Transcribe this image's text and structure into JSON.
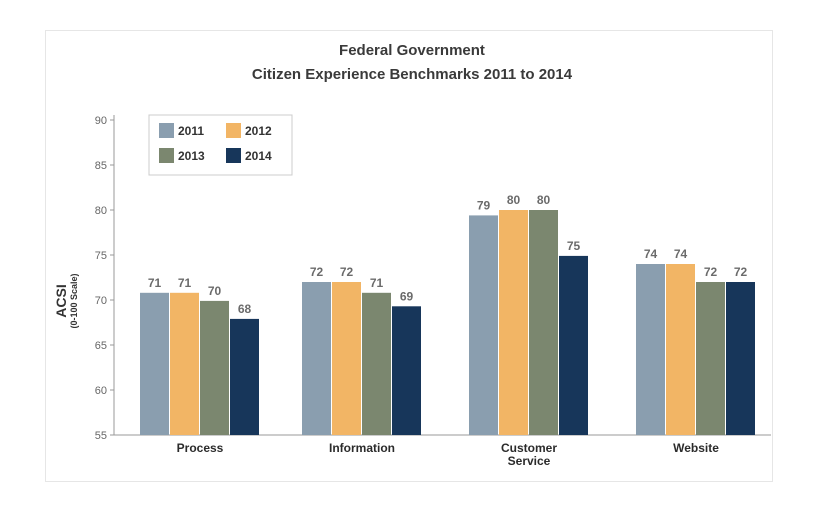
{
  "chart_data": {
    "type": "bar",
    "title": "Federal Government",
    "subtitle": "Citizen Experience Benchmarks 2011 to 2014",
    "ylabel": "ACSI",
    "ylabel_sub": "(0-100 Scale)",
    "xlabel": "",
    "ylim": [
      55,
      90
    ],
    "yticks": [
      55,
      60,
      65,
      70,
      75,
      80,
      85,
      90
    ],
    "categories": [
      [
        "Process"
      ],
      [
        "Information"
      ],
      [
        "Customer",
        "Service"
      ],
      [
        "Website"
      ]
    ],
    "series": [
      {
        "name": "2011",
        "color": "#8a9eaf",
        "values": [
          70.8,
          72,
          79.4,
          74
        ]
      },
      {
        "name": "2012",
        "color": "#f2b565",
        "values": [
          70.8,
          72,
          80,
          74
        ]
      },
      {
        "name": "2013",
        "color": "#7b876f",
        "values": [
          69.9,
          70.8,
          80,
          72
        ]
      },
      {
        "name": "2014",
        "color": "#17365a",
        "values": [
          67.9,
          69.3,
          74.9,
          72
        ]
      }
    ],
    "data_labels": [
      [
        "71",
        "72",
        "79",
        "74"
      ],
      [
        "71",
        "72",
        "80",
        "74"
      ],
      [
        "70",
        "71",
        "80",
        "72"
      ],
      [
        "68",
        "69",
        "75",
        "72"
      ]
    ],
    "legend_position": "top-left",
    "grid": false
  }
}
